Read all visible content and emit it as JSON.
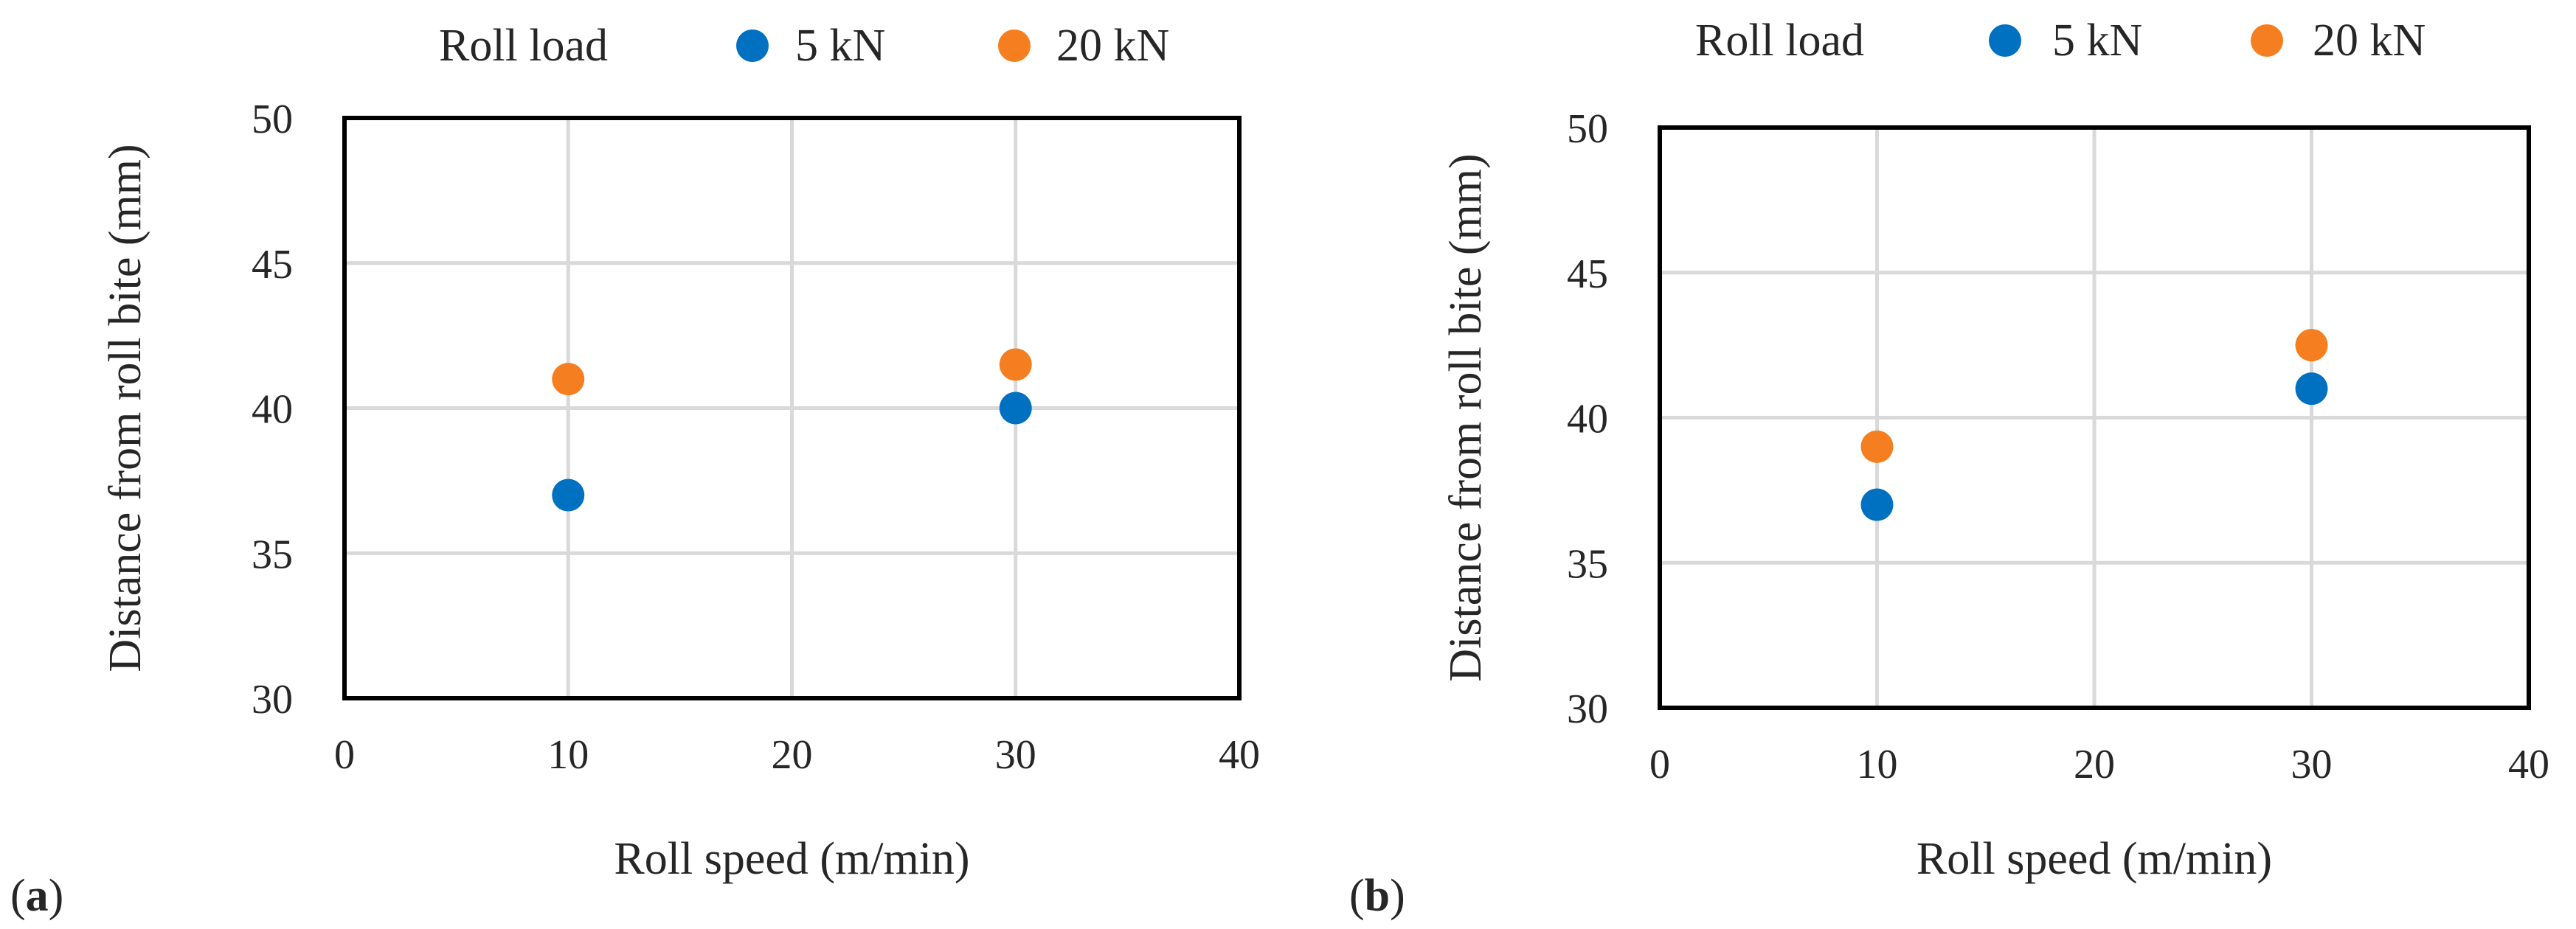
{
  "colors": {
    "series_5kN": "#0070C0",
    "series_20kN": "#F57F20",
    "grid": "#D9D9D9",
    "frame": "#000000",
    "text": "#262626"
  },
  "chart_data": [
    {
      "panel": "(a)",
      "panel_letter": "a",
      "type": "scatter",
      "xlabel": "Roll speed (m/min)",
      "ylabel": "Distance from roll bite (mm)",
      "xlim": [
        0,
        40
      ],
      "ylim": [
        30,
        50
      ],
      "xticks": [
        0,
        10,
        20,
        30,
        40
      ],
      "yticks": [
        30,
        35,
        40,
        45,
        50
      ],
      "grid": true,
      "legend": {
        "title": "Roll load",
        "placement": "top"
      },
      "series": [
        {
          "name": "5 kN",
          "color": "#0070C0",
          "x": [
            10,
            30
          ],
          "y": [
            37,
            40
          ]
        },
        {
          "name": "20 kN",
          "color": "#F57F20",
          "x": [
            10,
            30
          ],
          "y": [
            41,
            41.5
          ]
        }
      ]
    },
    {
      "panel": "(b)",
      "panel_letter": "b",
      "type": "scatter",
      "xlabel": "Roll speed (m/min)",
      "ylabel": "Distance from roll bite (mm)",
      "xlim": [
        0,
        40
      ],
      "ylim": [
        30,
        50
      ],
      "xticks": [
        0,
        10,
        20,
        30,
        40
      ],
      "yticks": [
        30,
        35,
        40,
        45,
        50
      ],
      "grid": true,
      "legend": {
        "title": "Roll load",
        "placement": "top"
      },
      "series": [
        {
          "name": "5 kN",
          "color": "#0070C0",
          "x": [
            10,
            30
          ],
          "y": [
            37,
            41
          ]
        },
        {
          "name": "20 kN",
          "color": "#F57F20",
          "x": [
            10,
            30
          ],
          "y": [
            39,
            42.5
          ]
        }
      ]
    }
  ]
}
